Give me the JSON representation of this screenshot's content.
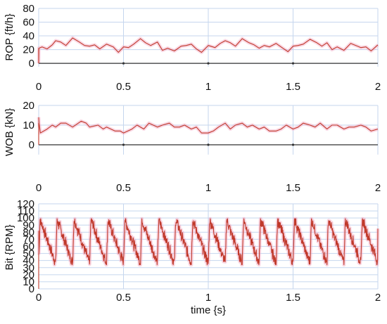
{
  "figure": {
    "xlabel": "time {s}"
  },
  "chart_data": [
    {
      "type": "line",
      "id": "rop",
      "ylabel": "ROP {ft/h}",
      "xlim": [
        0,
        2
      ],
      "ylim": [
        -5,
        80
      ],
      "x_ticks": [
        "0",
        "0.5",
        "1",
        "1.5",
        "2"
      ],
      "y_ticks": [
        "0",
        "20",
        "40",
        "60",
        "80"
      ],
      "grid": true,
      "line_color": "#c0392b",
      "band_color": "#f2a6c2",
      "baseline": {
        "value": 0,
        "color": "#333333"
      },
      "series": [
        {
          "x": [
            0,
            0.0012,
            0.02,
            0.05,
            0.08,
            0.1,
            0.13,
            0.16,
            0.2,
            0.24,
            0.27,
            0.3,
            0.33,
            0.36,
            0.4,
            0.44,
            0.47,
            0.5,
            0.53,
            0.56,
            0.6,
            0.63,
            0.66,
            0.7,
            0.73,
            0.76,
            0.8,
            0.84,
            0.87,
            0.9,
            0.93,
            0.96,
            1.0,
            1.04,
            1.07,
            1.1,
            1.13,
            1.16,
            1.2,
            1.24,
            1.27,
            1.3,
            1.33,
            1.36,
            1.4,
            1.44,
            1.47,
            1.5,
            1.53,
            1.56,
            1.6,
            1.64,
            1.67,
            1.7,
            1.73,
            1.76,
            1.8,
            1.84,
            1.87,
            1.9,
            1.93,
            1.96,
            2.0
          ],
          "values": [
            0,
            22,
            24,
            21,
            27,
            33,
            31,
            26,
            37,
            31,
            26,
            25,
            27,
            21,
            28,
            24,
            16,
            24,
            23,
            28,
            36,
            30,
            26,
            31,
            19,
            22,
            18,
            25,
            26,
            28,
            21,
            16,
            26,
            23,
            29,
            33,
            30,
            25,
            36,
            30,
            27,
            22,
            26,
            24,
            29,
            22,
            17,
            25,
            26,
            28,
            35,
            30,
            25,
            30,
            20,
            24,
            19,
            29,
            26,
            23,
            24,
            18,
            27
          ]
        }
      ]
    },
    {
      "type": "line",
      "id": "wob",
      "ylabel": "WOB {kN}",
      "xlim": [
        0,
        2
      ],
      "ylim": [
        -5,
        20
      ],
      "x_ticks": [
        "0",
        "0.5",
        "1",
        "1.5",
        "2"
      ],
      "y_ticks": [
        "0",
        "10",
        "20"
      ],
      "grid": true,
      "line_color": "#c0392b",
      "band_color": "#f2a6c2",
      "baseline": {
        "value": 0,
        "color": "#333333"
      },
      "series": [
        {
          "x": [
            0,
            0.002,
            0.01,
            0.05,
            0.08,
            0.1,
            0.13,
            0.16,
            0.2,
            0.25,
            0.28,
            0.3,
            0.35,
            0.38,
            0.4,
            0.45,
            0.48,
            0.5,
            0.55,
            0.58,
            0.62,
            0.65,
            0.7,
            0.73,
            0.77,
            0.8,
            0.83,
            0.86,
            0.9,
            0.93,
            0.96,
            1.0,
            1.03,
            1.06,
            1.1,
            1.13,
            1.16,
            1.2,
            1.23,
            1.26,
            1.3,
            1.33,
            1.36,
            1.4,
            1.43,
            1.46,
            1.5,
            1.53,
            1.56,
            1.6,
            1.63,
            1.66,
            1.7,
            1.73,
            1.76,
            1.8,
            1.83,
            1.86,
            1.9,
            1.93,
            1.96,
            2.0
          ],
          "values": [
            14,
            11,
            6,
            8,
            10,
            9,
            11,
            11,
            9,
            12,
            11,
            9,
            10,
            8,
            9,
            7,
            7,
            6,
            8,
            10,
            8,
            11,
            9,
            10,
            11,
            9,
            9,
            10,
            8,
            9,
            6,
            6,
            7,
            9,
            11,
            8,
            10,
            11,
            9,
            10,
            8,
            9,
            7,
            7,
            8,
            10,
            8,
            9,
            11,
            10,
            9,
            11,
            8,
            10,
            10,
            8,
            9,
            9,
            10,
            9,
            7,
            8
          ]
        }
      ]
    },
    {
      "type": "line",
      "id": "bit_rpm",
      "ylabel": "Bit {RPM}",
      "xlabel": "time {s}",
      "xlim": [
        0,
        2
      ],
      "ylim": [
        0,
        120
      ],
      "x_ticks": [
        "0",
        "0.5",
        "1",
        "1.5",
        "2"
      ],
      "y_ticks": [
        "0",
        "10",
        "20",
        "30",
        "40",
        "50",
        "60",
        "70",
        "80",
        "90",
        "100",
        "110",
        "120"
      ],
      "grid": true,
      "line_color": "#c0392b",
      "band_color": "#f2a6c2",
      "sawtooth": {
        "period_s": 0.1,
        "peak": 98,
        "trough": 36,
        "noise_amplitude": 9,
        "start": 82,
        "end": 85
      }
    }
  ]
}
